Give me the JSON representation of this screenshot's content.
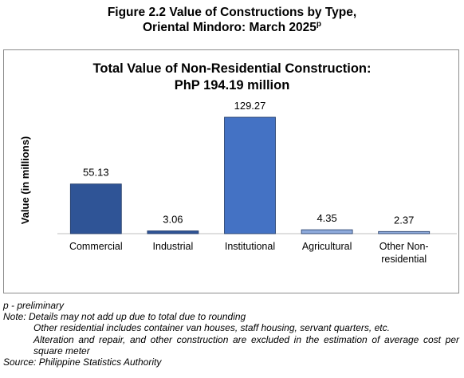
{
  "figure": {
    "title_line1": "Figure 2.2 Value of Constructions by Type,",
    "title_line2": "Oriental Mindoro: March 2025",
    "title_superscript": "p"
  },
  "chart_data": {
    "type": "bar",
    "title": "Total Value of Non-Residential Construction:",
    "subtitle": "PhP 194.19 million",
    "xlabel": "",
    "ylabel": "Value (in millions)",
    "categories": [
      "Commercial",
      "Industrial",
      "Institutional",
      "Agricultural",
      "Other Non-residential"
    ],
    "category_lines": [
      [
        "Commercial"
      ],
      [
        "Industrial"
      ],
      [
        "Institutional"
      ],
      [
        "Agricultural"
      ],
      [
        "Other Non-",
        "residential"
      ]
    ],
    "values": [
      55.13,
      3.06,
      129.27,
      4.35,
      2.37
    ],
    "value_labels": [
      "55.13",
      "3.06",
      "129.27",
      "4.35",
      "2.37"
    ],
    "bar_colors": [
      "#2f5496",
      "#2f5496",
      "#4472c4",
      "#8eaadb",
      "#8eaadb"
    ],
    "ylim": [
      0,
      129.27
    ],
    "grid": false,
    "legend": "none"
  },
  "notes": {
    "preliminary": "p - preliminary",
    "note_main": "Note: Details may not add up due to total due to rounding",
    "note_residential": "Other residential includes container van houses, staff housing, servant quarters, etc.",
    "note_alteration": "Alteration and repair, and other construction are excluded in the estimation of average cost per square meter",
    "source": "Source: Philippine Statistics Authority"
  }
}
